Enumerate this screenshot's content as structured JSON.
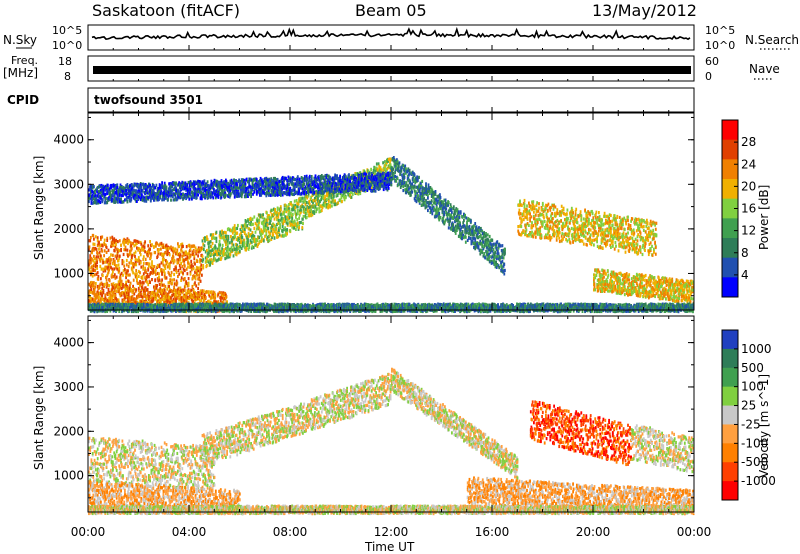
{
  "header": {
    "station": "Saskatoon (fitACF)",
    "beam": "Beam 05",
    "date": "13/May/2012"
  },
  "side_labels": {
    "nsky": "N.Sky",
    "freq_line1": "Freq.",
    "freq_line2": "[MHz]",
    "cpid": "CPID",
    "nsearch": "N.Search",
    "nave": "Nave"
  },
  "noise_panel": {
    "left_ticks": [
      "10^5",
      "10^0"
    ],
    "right_ticks": [
      "10^5",
      "10^0"
    ]
  },
  "freq_panel": {
    "left_ticks": [
      "18",
      "8"
    ],
    "right_ticks": [
      "60",
      "0"
    ]
  },
  "cpid_label": "twofsound 3501",
  "colors": {
    "power": [
      "#0000ff",
      "#2050b0",
      "#2e7d58",
      "#40a050",
      "#80d040",
      "#f0b000",
      "#f08000",
      "#e04000",
      "#ff0000"
    ],
    "velocity": [
      "#ff0000",
      "#ff4000",
      "#ff8000",
      "#ffa040",
      "#c8c8c8",
      "#80d040",
      "#40a050",
      "#2e7d58",
      "#2040c0"
    ]
  },
  "chart_data": [
    {
      "type": "heatmap",
      "title": "",
      "xlabel": "",
      "ylabel": "Slant Range [km]",
      "colorbar_label": "Power [dB]",
      "colorbar_ticks": [
        "28",
        "24",
        "20",
        "16",
        "12",
        "8",
        "4"
      ],
      "x_ticks": [
        "00:00",
        "04:00",
        "08:00",
        "12:00",
        "16:00",
        "20:00",
        "00:00"
      ],
      "y_ticks": [
        "1000",
        "2000",
        "3000",
        "4000"
      ],
      "xlim": [
        0,
        24
      ],
      "ylim": [
        180,
        4600
      ],
      "bands": [
        {
          "t0": 0.0,
          "t1": 4.5,
          "r0": 1400,
          "r1": 1150,
          "w": 500,
          "level": 6
        },
        {
          "t0": 0.0,
          "t1": 5.5,
          "r0": 600,
          "r1": 350,
          "w": 250,
          "level": 6
        },
        {
          "t0": 4.5,
          "t1": 8.5,
          "r0": 1500,
          "r1": 2400,
          "w": 350,
          "level": 4
        },
        {
          "t0": 8.5,
          "t1": 12.0,
          "r0": 2500,
          "r1": 3400,
          "w": 250,
          "level": 4
        },
        {
          "t0": 12.0,
          "t1": 16.5,
          "r0": 3400,
          "r1": 1300,
          "w": 300,
          "level": 2
        },
        {
          "t0": 17.0,
          "t1": 22.5,
          "r0": 2300,
          "r1": 1800,
          "w": 400,
          "level": 5
        },
        {
          "t0": 20.0,
          "t1": 24.0,
          "r0": 900,
          "r1": 600,
          "w": 250,
          "level": 5
        },
        {
          "t0": 0.0,
          "t1": 12.0,
          "r0": 2800,
          "r1": 3100,
          "w": 200,
          "level": 1
        },
        {
          "t0": 0.0,
          "t1": 24.0,
          "r0": 250,
          "r1": 250,
          "w": 100,
          "level": 2
        }
      ]
    },
    {
      "type": "heatmap",
      "title": "",
      "xlabel": "Time UT",
      "ylabel": "Slant Range [km]",
      "colorbar_label": "Velocity [m s^-1]",
      "colorbar_ticks": [
        "1000",
        "500",
        "100",
        "25",
        "-25",
        "-100",
        "-500",
        "-1000"
      ],
      "x_ticks": [
        "00:00",
        "04:00",
        "08:00",
        "12:00",
        "16:00",
        "20:00",
        "00:00"
      ],
      "y_ticks": [
        "1000",
        "2000",
        "3000",
        "4000"
      ],
      "xlim": [
        0,
        24
      ],
      "ylim": [
        180,
        4600
      ],
      "bands": [
        {
          "t0": 0.0,
          "t1": 5.0,
          "r0": 1400,
          "r1": 1200,
          "w": 500,
          "level": 4
        },
        {
          "t0": 0.0,
          "t1": 6.0,
          "r0": 600,
          "r1": 400,
          "w": 300,
          "level": 3
        },
        {
          "t0": 4.5,
          "t1": 12.0,
          "r0": 1600,
          "r1": 3000,
          "w": 350,
          "level": 4
        },
        {
          "t0": 12.0,
          "t1": 17.0,
          "r0": 3200,
          "r1": 1200,
          "w": 250,
          "level": 4
        },
        {
          "t0": 17.5,
          "t1": 21.5,
          "r0": 2300,
          "r1": 1700,
          "w": 450,
          "level": 1
        },
        {
          "t0": 15.0,
          "t1": 24.0,
          "r0": 700,
          "r1": 400,
          "w": 300,
          "level": 3
        },
        {
          "t0": 21.5,
          "t1": 24.0,
          "r0": 1800,
          "r1": 1500,
          "w": 400,
          "level": 4
        },
        {
          "t0": 0.0,
          "t1": 24.0,
          "r0": 250,
          "r1": 250,
          "w": 100,
          "level": 4
        }
      ]
    }
  ]
}
